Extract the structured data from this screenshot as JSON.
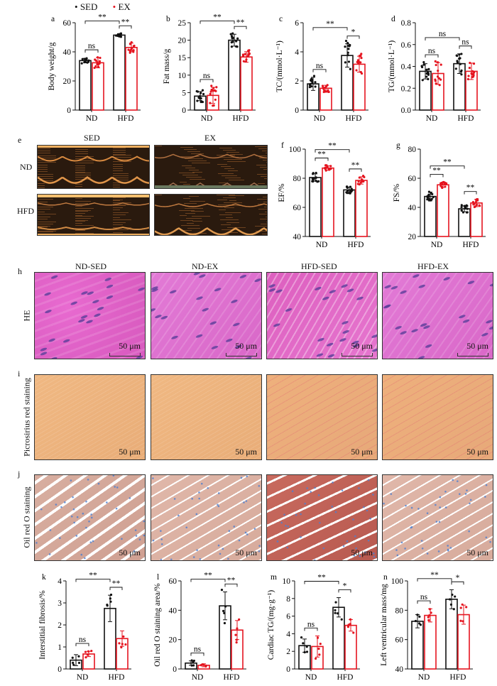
{
  "legend": {
    "items": [
      {
        "label": "SED",
        "color": "#111111"
      },
      {
        "label": "EX",
        "color": "#e5141f"
      }
    ]
  },
  "colors": {
    "SED": "#111111",
    "EX": "#e5141f"
  },
  "echo": {
    "letter": "e",
    "columns": [
      "SED",
      "EX"
    ],
    "rows": [
      "ND",
      "HFD"
    ]
  },
  "histology": {
    "columns": [
      "ND-SED",
      "ND-EX",
      "HFD-SED",
      "HFD-EX"
    ],
    "rows": [
      {
        "letter": "h",
        "label": "HE",
        "scale": "50 μm"
      },
      {
        "letter": "i",
        "label": "Picrosirius red staining",
        "scale": "50 μm"
      },
      {
        "letter": "j",
        "label": "Oil red O staining",
        "scale": "50 μm"
      }
    ]
  },
  "chart_data": [
    {
      "type": "bar",
      "letter": "a",
      "ylabel": "Body weight/g",
      "ylim": [
        0,
        60
      ],
      "yticks": [
        "0",
        "20",
        "40",
        "60"
      ],
      "categories": [
        "ND",
        "HFD"
      ],
      "series": [
        {
          "name": "SED",
          "values": [
            34,
            51.5
          ],
          "sd": [
            1.5,
            1
          ]
        },
        {
          "name": "EX",
          "values": [
            32.5,
            43
          ],
          "sd": [
            3.5,
            3
          ]
        }
      ],
      "significance": {
        "ND": "ns",
        "HFD": "**",
        "SED_ND_vs_HFD": "**"
      }
    },
    {
      "type": "bar",
      "letter": "b",
      "ylabel": "Fat mass/g",
      "ylim": [
        0,
        25
      ],
      "yticks": [
        "0",
        "5",
        "10",
        "15",
        "20",
        "25"
      ],
      "categories": [
        "ND",
        "HFD"
      ],
      "series": [
        {
          "name": "SED",
          "values": [
            4,
            20
          ],
          "sd": [
            1.3,
            1.7
          ]
        },
        {
          "name": "EX",
          "values": [
            4.2,
            15.2
          ],
          "sd": [
            2.3,
            1.5
          ]
        }
      ],
      "significance": {
        "ND": "ns",
        "HFD": "**",
        "SED_ND_vs_HFD": "**"
      }
    },
    {
      "type": "bar",
      "letter": "c",
      "ylabel": "TC/(mmol·L⁻¹)",
      "ylim": [
        0,
        6
      ],
      "yticks": [
        "0",
        "2",
        "4",
        "6"
      ],
      "categories": [
        "ND",
        "HFD"
      ],
      "series": [
        {
          "name": "SED",
          "values": [
            1.8,
            3.75
          ],
          "sd": [
            0.45,
            0.8
          ]
        },
        {
          "name": "EX",
          "values": [
            1.5,
            3.15
          ],
          "sd": [
            0.2,
            0.55
          ]
        }
      ],
      "significance": {
        "ND": "ns",
        "HFD": "*",
        "SED_ND_vs_HFD": "**"
      }
    },
    {
      "type": "bar",
      "letter": "d",
      "ylabel": "TG/(mmol·L⁻¹)",
      "ylim": [
        0,
        0.8
      ],
      "yticks": [
        "0.0",
        "0.2",
        "0.4",
        "0.6",
        "0.8"
      ],
      "categories": [
        "ND",
        "HFD"
      ],
      "series": [
        {
          "name": "SED",
          "values": [
            0.355,
            0.425
          ],
          "sd": [
            0.07,
            0.09
          ]
        },
        {
          "name": "EX",
          "values": [
            0.335,
            0.355
          ],
          "sd": [
            0.1,
            0.075
          ]
        }
      ],
      "significance": {
        "ND": "ns",
        "HFD": "ns",
        "SED_ND_vs_HFD": "ns"
      }
    },
    {
      "type": "bar",
      "letter": "f",
      "ylabel": "EF/%",
      "ylim": [
        40,
        100
      ],
      "yticks": [
        "40",
        "60",
        "80",
        "100"
      ],
      "categories": [
        "ND",
        "HFD"
      ],
      "series": [
        {
          "name": "SED",
          "values": [
            80.5,
            72
          ],
          "sd": [
            2.5,
            2
          ]
        },
        {
          "name": "EX",
          "values": [
            87,
            78.5
          ],
          "sd": [
            1.5,
            2.5
          ]
        }
      ],
      "significance": {
        "ND": "**",
        "HFD": "**",
        "SED_ND_vs_HFD": "**"
      }
    },
    {
      "type": "bar",
      "letter": "g",
      "ylabel": "FS/%",
      "ylim": [
        20,
        80
      ],
      "yticks": [
        "20",
        "40",
        "60",
        "80"
      ],
      "categories": [
        "ND",
        "HFD"
      ],
      "series": [
        {
          "name": "SED",
          "values": [
            47.5,
            39
          ],
          "sd": [
            3,
            2
          ]
        },
        {
          "name": "EX",
          "values": [
            55.5,
            43
          ],
          "sd": [
            1.8,
            2.5
          ]
        }
      ],
      "significance": {
        "ND": "**",
        "HFD": "**",
        "SED_ND_vs_HFD": "**"
      }
    },
    {
      "type": "bar",
      "letter": "k",
      "ylabel": "Interstitial fibrosis/%",
      "ylim": [
        0,
        4
      ],
      "yticks": [
        "0",
        "1",
        "2",
        "3",
        "4"
      ],
      "categories": [
        "ND",
        "HFD"
      ],
      "series": [
        {
          "name": "SED",
          "values": [
            0.4,
            2.75
          ],
          "sd": [
            0.25,
            0.6
          ]
        },
        {
          "name": "EX",
          "values": [
            0.68,
            1.38
          ],
          "sd": [
            0.12,
            0.35
          ]
        }
      ],
      "significance": {
        "ND": "ns",
        "HFD": "**",
        "SED_ND_vs_HFD": "**"
      }
    },
    {
      "type": "bar",
      "letter": "l",
      "ylabel": "Oil red O staining area/%",
      "ylim": [
        0,
        60
      ],
      "yticks": [
        "0",
        "20",
        "40",
        "60"
      ],
      "categories": [
        "ND",
        "HFD"
      ],
      "series": [
        {
          "name": "SED",
          "values": [
            4,
            43
          ],
          "sd": [
            1.5,
            9.5
          ]
        },
        {
          "name": "EX",
          "values": [
            2.5,
            26.5
          ],
          "sd": [
            1,
            6.5
          ]
        }
      ],
      "significance": {
        "ND": "ns",
        "HFD": "**",
        "SED_ND_vs_HFD": "**"
      }
    },
    {
      "type": "bar",
      "letter": "m",
      "ylabel": "Cardiac TG/(mg·g⁻¹)",
      "ylim": [
        0,
        10
      ],
      "yticks": [
        "0",
        "2",
        "4",
        "6",
        "8",
        "10"
      ],
      "categories": [
        "ND",
        "HFD"
      ],
      "series": [
        {
          "name": "SED",
          "values": [
            2.65,
            7
          ],
          "sd": [
            0.75,
            1.1
          ]
        },
        {
          "name": "EX",
          "values": [
            2.55,
            4.95
          ],
          "sd": [
            1.2,
            0.65
          ]
        }
      ],
      "significance": {
        "ND": "ns",
        "HFD": "*",
        "SED_ND_vs_HFD": "**"
      }
    },
    {
      "type": "bar",
      "letter": "n",
      "ylabel": "Left ventricular mass/mg",
      "ylim": [
        40,
        100
      ],
      "yticks": [
        "40",
        "60",
        "80",
        "100"
      ],
      "categories": [
        "ND",
        "HFD"
      ],
      "series": [
        {
          "name": "SED",
          "values": [
            72.5,
            87.5
          ],
          "sd": [
            4.5,
            6.5
          ]
        },
        {
          "name": "EX",
          "values": [
            76.5,
            77
          ],
          "sd": [
            4.5,
            6.5
          ]
        }
      ],
      "significance": {
        "ND": "ns",
        "HFD": "*",
        "SED_ND_vs_HFD": "**"
      }
    }
  ]
}
